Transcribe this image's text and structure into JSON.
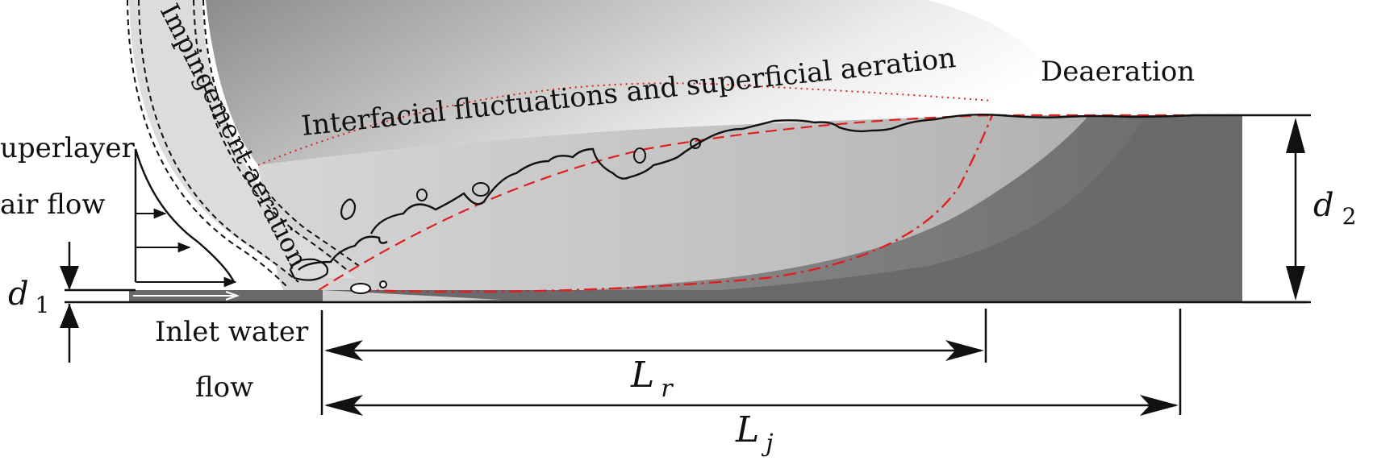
{
  "labels": {
    "deaeration": "Deaeration",
    "interfacial": "Interfacial fluctuations and superficial aeration",
    "impingement": "Impingement aeration",
    "superlayer_line1": "uperlayer",
    "superlayer_line2": "air flow",
    "inlet_line1": "Inlet water",
    "inlet_line2": "flow"
  },
  "dimensions": {
    "d1": {
      "symbol": "d",
      "subscript": "1"
    },
    "d2": {
      "symbol": "d",
      "subscript": "2"
    },
    "Lr": {
      "symbol": "L",
      "subscript": "r"
    },
    "Lj": {
      "symbol": "L",
      "subscript": "j"
    }
  },
  "colors": {
    "red_boundary": "#e02020",
    "dark_water": "#6a6a6a",
    "roller_gray": "#bdbdbd",
    "jet_band": "#dcdcdc",
    "ink": "#111111"
  }
}
